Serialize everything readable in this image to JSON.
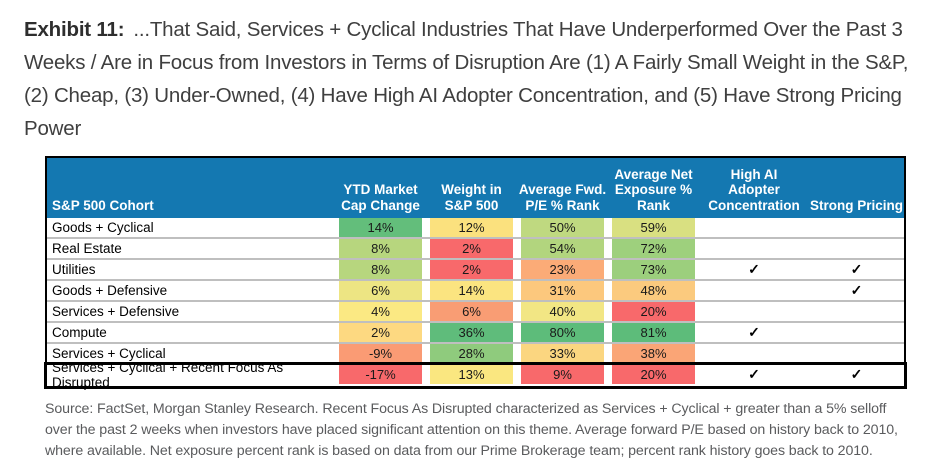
{
  "title": {
    "label": "Exhibit 11:",
    "text": "...That Said, Services + Cyclical Industries That Have Underperformed Over the Past 3 Weeks / Are in Focus from Investors in Terms of Disruption Are (1) A Fairly Small Weight in the S&P, (2) Cheap, (3) Under-Owned, (4) Have High AI Adopter Concentration, and (5) Have Strong Pricing Power"
  },
  "colors": {
    "header_bg": "#1478B1",
    "row_separator": "#BFBFBF",
    "scale_low": "#F8696B",
    "scale_mid": "#FFEB84",
    "scale_high": "#63BE7B",
    "highlight_border": "#000000"
  },
  "table": {
    "header": {
      "cohort": "S&P 500 Cohort",
      "ytd": "YTD Market\nCap Change",
      "weight": "Weight in\nS&P 500",
      "pe": "Average Fwd.\nP/E % Rank",
      "net": "Average Net\nExposure %\nRank",
      "ai": "High AI\nAdopter\nConcentration",
      "pricing": "Strong Pricing"
    },
    "rows": [
      {
        "cohort": "Goods + Cyclical",
        "ytd": "14%",
        "ytd_bg": "#63BE7B",
        "weight": "12%",
        "weight_bg": "#FBE17E",
        "pe": "50%",
        "pe_bg": "#BFD980",
        "net": "59%",
        "net_bg": "#D9E081",
        "ai": "",
        "pricing": ""
      },
      {
        "cohort": "Real Estate",
        "ytd": "8%",
        "ytd_bg": "#B7D67E",
        "weight": "2%",
        "weight_bg": "#F8696B",
        "pe": "54%",
        "pe_bg": "#B2D57E",
        "net": "72%",
        "net_bg": "#9ED07D",
        "ai": "",
        "pricing": ""
      },
      {
        "cohort": "Utilities",
        "ytd": "8%",
        "ytd_bg": "#B7D67E",
        "weight": "2%",
        "weight_bg": "#F8696B",
        "pe": "23%",
        "pe_bg": "#FBAB77",
        "net": "73%",
        "net_bg": "#9CCF7D",
        "ai": "✓",
        "pricing": "✓"
      },
      {
        "cohort": "Goods + Defensive",
        "ytd": "6%",
        "ytd_bg": "#EDE583",
        "weight": "14%",
        "weight_bg": "#FBE480",
        "pe": "31%",
        "pe_bg": "#FCC87D",
        "net": "48%",
        "net_bg": "#FBCA7E",
        "ai": "",
        "pricing": "✓"
      },
      {
        "cohort": "Services + Defensive",
        "ytd": "4%",
        "ytd_bg": "#FBE983",
        "weight": "6%",
        "weight_bg": "#F99D74",
        "pe": "40%",
        "pe_bg": "#F2E684",
        "net": "20%",
        "net_bg": "#F8696B",
        "ai": "",
        "pricing": ""
      },
      {
        "cohort": "Compute",
        "ytd": "2%",
        "ytd_bg": "#FDD981",
        "weight": "36%",
        "weight_bg": "#5FBC7B",
        "pe": "80%",
        "pe_bg": "#5DBC7A",
        "net": "81%",
        "net_bg": "#5DBC7A",
        "ai": "✓",
        "pricing": ""
      },
      {
        "cohort": "Services + Cyclical",
        "ytd": "-9%",
        "ytd_bg": "#FA9B74",
        "weight": "28%",
        "weight_bg": "#8FCB7D",
        "pe": "33%",
        "pe_bg": "#FBD680",
        "net": "38%",
        "net_bg": "#FAA576",
        "ai": "",
        "pricing": ""
      },
      {
        "cohort": "Services + Cyclical + Recent Focus As Disrupted",
        "ytd": "-17%",
        "ytd_bg": "#F8696B",
        "weight": "13%",
        "weight_bg": "#FAE780",
        "pe": "9%",
        "pe_bg": "#F8696B",
        "net": "20%",
        "net_bg": "#F8696B",
        "ai": "✓",
        "pricing": "✓"
      }
    ]
  },
  "source": "Source: FactSet, Morgan Stanley Research. Recent Focus As Disrupted characterized as Services + Cyclical + greater than a 5% selloff over the past 2 weeks when investors have placed significant attention on this theme. Average forward P/E based on history back to 2010, where available. Net exposure percent rank is based on data from our Prime Brokerage team; percent rank history goes back to 2010.",
  "chart_data": {
    "type": "table",
    "title": "Exhibit 11: ...That Said, Services + Cyclical Industries That Have Underperformed Over the Past 3 Weeks / Are in Focus from Investors in Terms of Disruption Are (1) A Fairly Small Weight in the S&P, (2) Cheap, (3) Under-Owned, (4) Have High AI Adopter Concentration, and (5) Have Strong Pricing Power",
    "columns": [
      "S&P 500 Cohort",
      "YTD Market Cap Change",
      "Weight in S&P 500",
      "Average Fwd. P/E % Rank",
      "Average Net Exposure % Rank",
      "High AI Adopter Concentration",
      "Strong Pricing"
    ],
    "rows": [
      [
        "Goods + Cyclical",
        "14%",
        "12%",
        "50%",
        "59%",
        "",
        ""
      ],
      [
        "Real Estate",
        "8%",
        "2%",
        "54%",
        "72%",
        "",
        ""
      ],
      [
        "Utilities",
        "8%",
        "2%",
        "23%",
        "73%",
        "✓",
        "✓"
      ],
      [
        "Goods + Defensive",
        "6%",
        "14%",
        "31%",
        "48%",
        "",
        "✓"
      ],
      [
        "Services + Defensive",
        "4%",
        "6%",
        "40%",
        "20%",
        "",
        ""
      ],
      [
        "Compute",
        "2%",
        "36%",
        "80%",
        "81%",
        "✓",
        ""
      ],
      [
        "Services + Cyclical",
        "-9%",
        "28%",
        "33%",
        "38%",
        "",
        ""
      ],
      [
        "Services + Cyclical + Recent Focus As Disrupted",
        "-17%",
        "13%",
        "9%",
        "20%",
        "✓",
        "✓"
      ]
    ],
    "highlighted_row": "Services + Cyclical + Recent Focus As Disrupted",
    "color_scale": {
      "low": "#F8696B",
      "mid": "#FFEB84",
      "high": "#63BE7B"
    },
    "notes": "Cells use red-yellow-green conditional-format heatmap coloring"
  }
}
